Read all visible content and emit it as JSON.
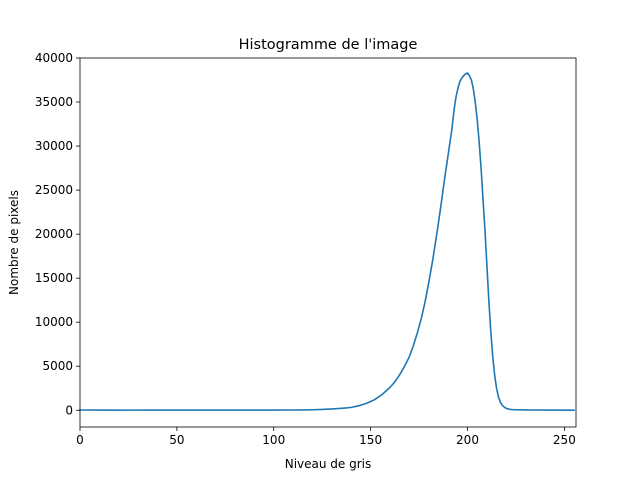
{
  "chart_data": {
    "type": "line",
    "title": "Histogramme de l'image",
    "xlabel": "Niveau de gris",
    "ylabel": "Nombre de pixels",
    "xlim": [
      0,
      256
    ],
    "ylim": [
      -1900,
      40000
    ],
    "xticks": [
      0,
      50,
      100,
      150,
      200,
      250
    ],
    "yticks": [
      0,
      5000,
      10000,
      15000,
      20000,
      25000,
      30000,
      35000,
      40000
    ],
    "grid": false,
    "series": [
      {
        "color": "#1f77b4",
        "x": [
          0,
          10,
          20,
          40,
          60,
          80,
          100,
          110,
          115,
          120,
          125,
          130,
          135,
          138,
          140,
          142,
          144,
          146,
          148,
          150,
          152,
          154,
          156,
          158,
          160,
          162,
          164,
          166,
          168,
          170,
          172,
          174,
          176,
          178,
          180,
          182,
          184,
          186,
          188,
          190,
          192,
          193,
          194,
          195,
          196,
          197,
          198,
          199,
          200,
          201,
          202,
          203,
          204,
          205,
          206,
          207,
          208,
          209,
          210,
          211,
          212,
          213,
          214,
          215,
          216,
          217,
          218,
          219,
          220,
          221,
          222,
          223,
          224,
          226,
          228,
          230,
          235,
          240,
          245,
          250,
          255
        ],
        "y": [
          30,
          20,
          15,
          20,
          20,
          20,
          25,
          30,
          40,
          60,
          100,
          150,
          220,
          280,
          330,
          420,
          520,
          650,
          800,
          1000,
          1200,
          1500,
          1800,
          2200,
          2600,
          3100,
          3700,
          4400,
          5200,
          6100,
          7300,
          8700,
          10300,
          12200,
          14500,
          17000,
          19800,
          22800,
          26000,
          29000,
          32000,
          34000,
          35500,
          36500,
          37300,
          37700,
          38000,
          38200,
          38300,
          38000,
          37500,
          36500,
          35000,
          33000,
          30500,
          27500,
          24000,
          20500,
          16500,
          12500,
          9000,
          6200,
          4000,
          2500,
          1500,
          900,
          550,
          350,
          220,
          150,
          100,
          80,
          70,
          60,
          50,
          40,
          30,
          25,
          20,
          15,
          10
        ]
      }
    ]
  }
}
